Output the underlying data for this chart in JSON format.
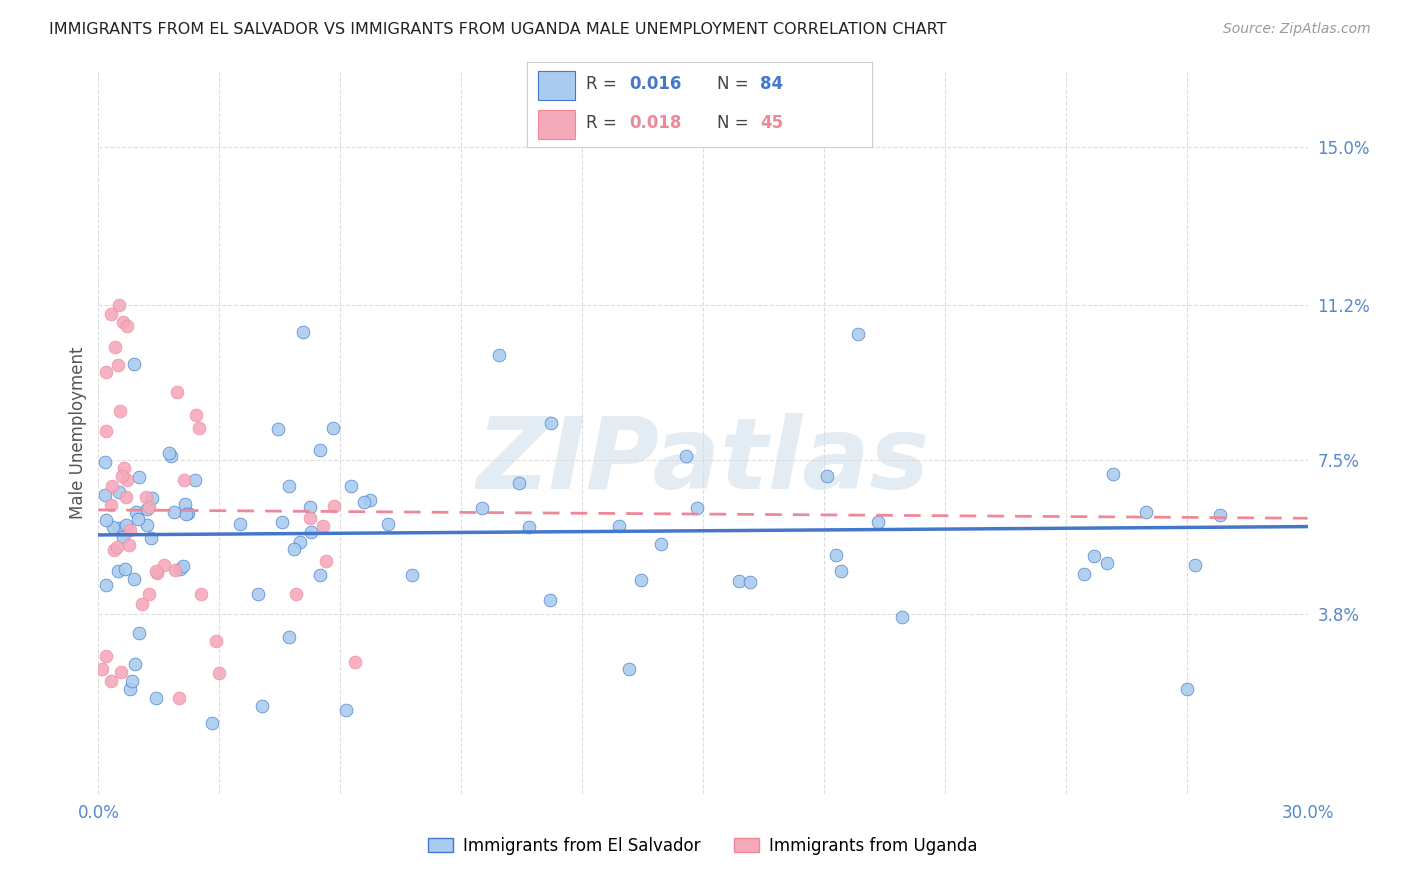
{
  "title": "IMMIGRANTS FROM EL SALVADOR VS IMMIGRANTS FROM UGANDA MALE UNEMPLOYMENT CORRELATION CHART",
  "source": "Source: ZipAtlas.com",
  "ylabel": "Male Unemployment",
  "xlim": [
    0.0,
    0.3
  ],
  "ylim": [
    -0.005,
    0.168
  ],
  "yticks": [
    0.038,
    0.075,
    0.112,
    0.15
  ],
  "ytick_labels": [
    "3.8%",
    "7.5%",
    "11.2%",
    "15.0%"
  ],
  "xticks": [
    0.0,
    0.03,
    0.06,
    0.09,
    0.12,
    0.15,
    0.18,
    0.21,
    0.24,
    0.27,
    0.3
  ],
  "color_es": "#aaccee",
  "color_ug": "#f5aabc",
  "line_es": "#4477cc",
  "line_ug": "#ee8899",
  "watermark_color": "#ccdde8",
  "label_es": "Immigrants from El Salvador",
  "label_ug": "Immigrants from Uganda",
  "bg": "#ffffff",
  "grid_color": "#dddddd",
  "title_color": "#222222",
  "source_color": "#999999",
  "tick_color": "#5588cc",
  "ylabel_color": "#555555",
  "es_trend_start": 0.057,
  "es_trend_end": 0.059,
  "ug_trend_start": 0.063,
  "ug_trend_end": 0.061
}
